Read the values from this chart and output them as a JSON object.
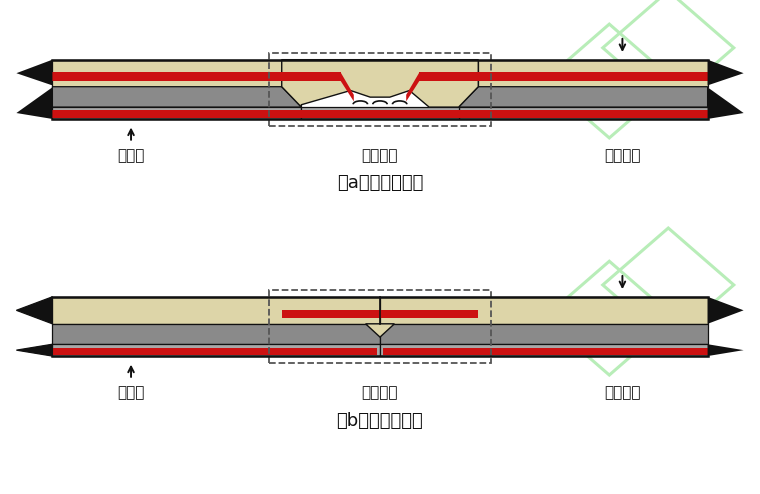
{
  "bg_color": "#ffffff",
  "fig_width": 7.6,
  "fig_height": 4.94,
  "dpi": 100,
  "label_yuzhi": "预制板",
  "label_lianjie": "连接部位",
  "label_xianjiao": "现浇部分",
  "caption_a": "（a）整体式接缝",
  "caption_b": "（b）分离式接缝",
  "color_red": "#cc1111",
  "color_beige": "#ddd5a8",
  "color_gray_dark": "#8a8a8a",
  "color_gray_mid": "#a8a8a8",
  "color_black": "#111111",
  "color_dashed": "#555555",
  "wm_color": "#b8edb8",
  "wm_lw": 2.2,
  "font_size_label": 11,
  "font_size_caption": 13
}
